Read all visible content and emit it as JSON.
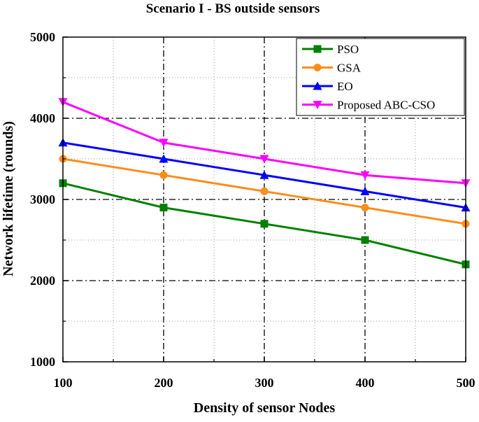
{
  "chart_data": {
    "type": "line",
    "title": "Scenario I - BS outside sensors",
    "xlabel": "Density of sensor Nodes",
    "ylabel": "Network lifetime (rounds)",
    "x": [
      100,
      200,
      300,
      400,
      500
    ],
    "xlim": [
      100,
      500
    ],
    "ylim": [
      1000,
      5000
    ],
    "xticks": [
      100,
      200,
      300,
      400,
      500
    ],
    "yticks": [
      1000,
      2000,
      3000,
      4000,
      5000
    ],
    "grid": true,
    "legend_position": "top-right",
    "series": [
      {
        "name": "PSO",
        "color": "#008000",
        "marker": "square",
        "values": [
          3200,
          2900,
          2700,
          2500,
          2200
        ]
      },
      {
        "name": "GSA",
        "color": "#ff8c1a",
        "marker": "circle",
        "values": [
          3500,
          3300,
          3100,
          2900,
          2700
        ]
      },
      {
        "name": "EO",
        "color": "#0000ff",
        "marker": "triangle-up",
        "values": [
          3700,
          3500,
          3300,
          3100,
          2900
        ]
      },
      {
        "name": "Proposed ABC-CSO",
        "color": "#ff00ff",
        "marker": "triangle-down",
        "values": [
          4200,
          3700,
          3500,
          3300,
          3200
        ]
      }
    ]
  }
}
